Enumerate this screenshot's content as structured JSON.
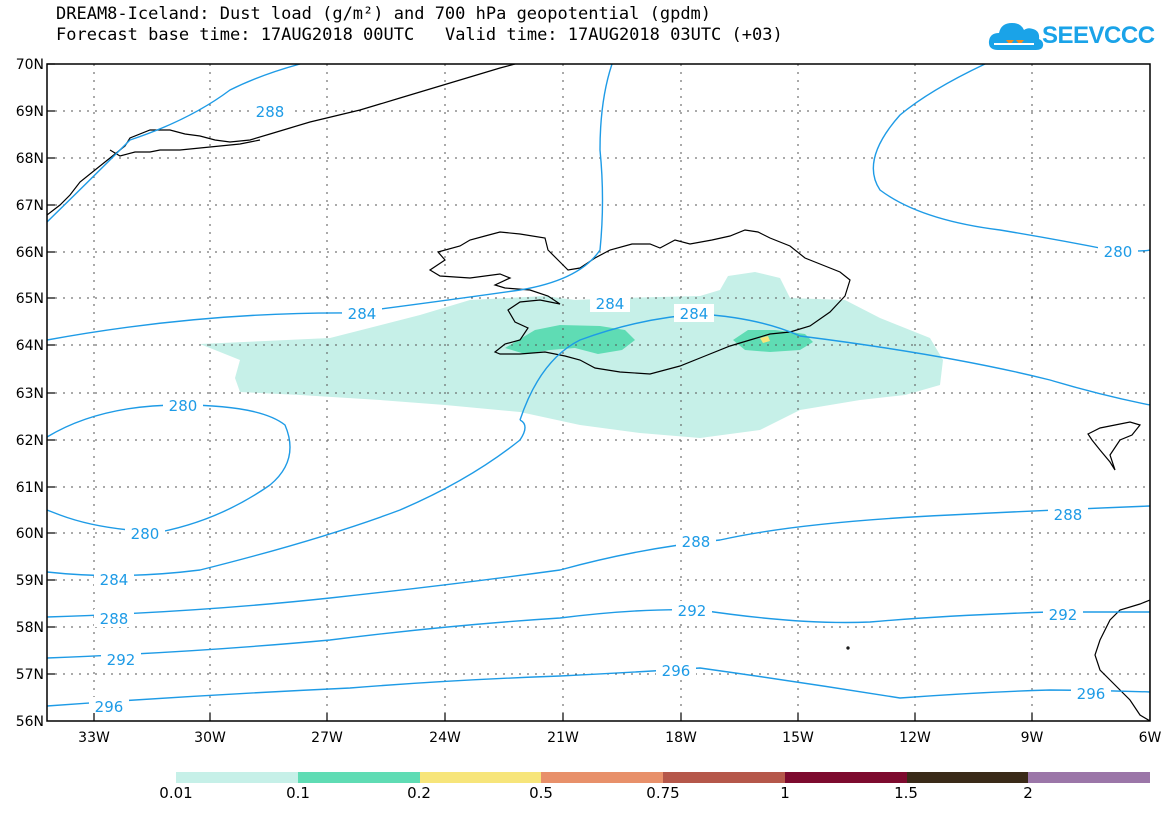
{
  "header": {
    "title_line1": "DREAM8-Iceland: Dust load (g/m²) and 700 hPa geopotential (gpdm)",
    "forecast_base_label": "Forecast base time: 17AUG2018 00UTC",
    "valid_label": "Valid time: 17AUG2018 03UTC (+03)"
  },
  "logo": {
    "text": "SEEVCCC",
    "icon": "cloud-logo-icon",
    "color": "#1aa3e8"
  },
  "map": {
    "lat_labels": [
      "70N",
      "69N",
      "68N",
      "67N",
      "66N",
      "65N",
      "64N",
      "63N",
      "62N",
      "61N",
      "60N",
      "59N",
      "58N",
      "57N",
      "56N"
    ],
    "lon_labels": [
      "33W",
      "30W",
      "27W",
      "24W",
      "21W",
      "18W",
      "15W",
      "12W",
      "9W",
      "6W"
    ],
    "contour_color": "#1e9be6",
    "contour_labels": {
      "c288_greenland": "288",
      "c284_west": "284",
      "c284_mid": "284",
      "c284_east": "284",
      "c280_ne": "280",
      "c280_w_top": "280",
      "c280_w_bottom": "280",
      "c288_south": "288",
      "c288_sw": "288",
      "c288_se": "288",
      "c284_sw": "284",
      "c292_w": "292",
      "c292_mid": "292",
      "c292_e": "292",
      "c296_w": "296",
      "c296_mid": "296",
      "c296_e": "296"
    }
  },
  "legend": {
    "colors": [
      "#c6f0e8",
      "#5fdcb4",
      "#f7e57a",
      "#e8906a",
      "#b5574a",
      "#7d0a2e",
      "#3a2a18",
      "#9b76a8"
    ],
    "labels": [
      "0.01",
      "0.1",
      "0.2",
      "0.5",
      "0.75",
      "1",
      "1.5",
      "2"
    ]
  }
}
